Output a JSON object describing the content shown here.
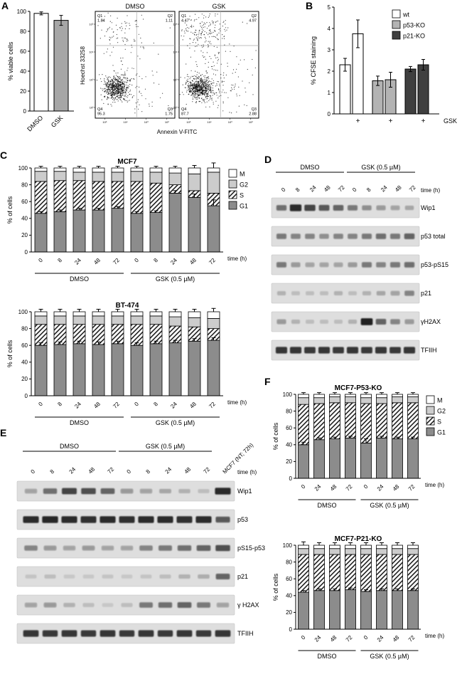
{
  "phases": [
    {
      "key": "g1",
      "label": "G1",
      "fill": "#8c8c8c",
      "hatch": false
    },
    {
      "key": "s",
      "label": "S",
      "fill": "#ffffff",
      "hatch": true
    },
    {
      "key": "g2",
      "label": "G2",
      "fill": "#cccccc",
      "hatch": false
    },
    {
      "key": "m",
      "label": "M",
      "fill": "#ffffff",
      "hatch": false
    }
  ],
  "legend": [
    {
      "label": "M",
      "fill": "#ffffff",
      "hatch": false
    },
    {
      "label": "G2",
      "fill": "#cccccc",
      "hatch": false
    },
    {
      "label": "S",
      "fill": "#ffffff",
      "hatch": true
    },
    {
      "label": "G1",
      "fill": "#8c8c8c",
      "hatch": false
    }
  ],
  "panelA": {
    "label": "A",
    "viability": {
      "type": "bar",
      "ylabel": "% viable cells",
      "ylim": [
        0,
        100
      ],
      "yticks": [
        0,
        20,
        40,
        60,
        80,
        100
      ],
      "categories": [
        "DMSO",
        "GSK"
      ],
      "values": [
        98,
        91
      ],
      "errors": [
        1.5,
        5
      ],
      "colors": [
        "#ffffff",
        "#a6a6a6"
      ]
    },
    "flow": {
      "ylabel": "Hoechst 33258",
      "xlabel": "Annexin V-FITC",
      "axis_ticks": [
        "10²",
        "10³",
        "10⁴",
        "10⁵"
      ],
      "plots": [
        {
          "title": "DMSO",
          "q1": "1.84",
          "q2": "1.11",
          "q3": "1.75",
          "q4": "95.3"
        },
        {
          "title": "GSK",
          "q1": "4.47",
          "q2": "4.97",
          "q3": "2.88",
          "q4": "87.7"
        }
      ]
    }
  },
  "panelB": {
    "label": "B",
    "chart": {
      "type": "bar",
      "ylabel": "% CFSE staining",
      "ylim": [
        0,
        5
      ],
      "yticks": [
        0,
        1,
        2,
        3,
        4,
        5
      ],
      "series": [
        {
          "name": "wt",
          "color": "#ffffff",
          "values": [
            2.3,
            3.75
          ],
          "errors": [
            0.3,
            0.65
          ]
        },
        {
          "name": "p53-KO",
          "color": "#b3b3b3",
          "values": [
            1.55,
            1.6
          ],
          "errors": [
            0.22,
            0.35
          ]
        },
        {
          "name": "p21-KO",
          "color": "#3f3f3f",
          "values": [
            2.1,
            2.3
          ],
          "errors": [
            0.12,
            0.25
          ]
        }
      ],
      "plus_label": "+",
      "x_axis_label": "GSK"
    }
  },
  "panelC": {
    "label": "C",
    "charts": [
      {
        "type": "stacked-bar",
        "title": "MCF7",
        "ylabel": "% of cells",
        "time_label": "time (h)",
        "times": [
          "0",
          "8",
          "24",
          "48",
          "72",
          "0",
          "8",
          "24",
          "48",
          "72"
        ],
        "groups": [
          {
            "name": "DMSO",
            "count": 5
          },
          {
            "name": "GSK (0.5 µM)",
            "count": 5
          }
        ],
        "g1": [
          46,
          48,
          50,
          50,
          52,
          46,
          47,
          70,
          65,
          55
        ],
        "s": [
          38,
          37,
          35,
          34,
          32,
          38,
          35,
          10,
          8,
          15
        ],
        "g2": [
          12,
          11,
          10,
          11,
          11,
          12,
          13,
          14,
          20,
          25
        ],
        "m": [
          4,
          4,
          5,
          5,
          5,
          4,
          5,
          6,
          7,
          5
        ],
        "err_g1": [
          2,
          2,
          2,
          2,
          2,
          2,
          2,
          3,
          4,
          7
        ],
        "err_top": [
          2,
          2,
          2,
          2,
          2,
          2,
          2,
          2,
          3,
          6
        ]
      },
      {
        "type": "stacked-bar",
        "title": "BT-474",
        "ylabel": "% of cells",
        "time_label": "time (h)",
        "times": [
          "0",
          "8",
          "24",
          "48",
          "72",
          "0",
          "8",
          "24",
          "48",
          "72"
        ],
        "groups": [
          {
            "name": "DMSO",
            "count": 5
          },
          {
            "name": "GSK (0.5 µM)",
            "count": 5
          }
        ],
        "g1": [
          60,
          61,
          62,
          61,
          62,
          60,
          62,
          63,
          65,
          66
        ],
        "s": [
          25,
          24,
          23,
          24,
          23,
          25,
          23,
          20,
          17,
          14
        ],
        "g2": [
          10,
          10,
          10,
          10,
          10,
          10,
          10,
          11,
          11,
          12
        ],
        "m": [
          5,
          5,
          5,
          5,
          5,
          5,
          5,
          6,
          7,
          8
        ],
        "err_g1": [
          3,
          3,
          3,
          3,
          3,
          3,
          3,
          3,
          3,
          3
        ],
        "err_top": [
          3,
          3,
          3,
          3,
          3,
          3,
          3,
          3,
          3,
          4
        ]
      }
    ]
  },
  "panelD": {
    "label": "D",
    "blot": {
      "groups": [
        {
          "name": "DMSO",
          "count": 5
        },
        {
          "name": "GSK (0.5 µM)",
          "count": 5
        }
      ],
      "lanes": [
        "0",
        "8",
        "24",
        "48",
        "72",
        "0",
        "8",
        "24",
        "48",
        "72"
      ],
      "time_label": "time (h)",
      "rows": [
        {
          "name": "Wip1",
          "bands": [
            0.55,
            0.9,
            0.75,
            0.65,
            0.6,
            0.5,
            0.4,
            0.35,
            0.3,
            0.25
          ]
        },
        {
          "name": "p53 total",
          "bands": [
            0.5,
            0.45,
            0.45,
            0.4,
            0.45,
            0.45,
            0.5,
            0.55,
            0.5,
            0.6
          ]
        },
        {
          "name": "p53-pS15",
          "bands": [
            0.5,
            0.35,
            0.3,
            0.3,
            0.3,
            0.35,
            0.5,
            0.45,
            0.5,
            0.55
          ]
        },
        {
          "name": "p21",
          "bands": [
            0.2,
            0.15,
            0.15,
            0.15,
            0.2,
            0.15,
            0.2,
            0.25,
            0.3,
            0.45
          ]
        },
        {
          "name": "γH2AX",
          "bands": [
            0.35,
            0.2,
            0.15,
            0.15,
            0.15,
            0.2,
            0.95,
            0.6,
            0.45,
            0.35
          ]
        },
        {
          "name": "TFIIH",
          "bands": [
            0.85,
            0.85,
            0.8,
            0.85,
            0.8,
            0.85,
            0.8,
            0.85,
            0.8,
            0.85
          ]
        }
      ]
    }
  },
  "panelE": {
    "label": "E",
    "blot": {
      "groups": [
        {
          "name": "DMSO",
          "count": 5
        },
        {
          "name": "GSK (0.5 µM)",
          "count": 5
        }
      ],
      "lanes": [
        "0",
        "8",
        "24",
        "48",
        "72",
        "0",
        "8",
        "24",
        "48",
        "72",
        "MCF7 (NT; 72h)"
      ],
      "time_label": "time (h)",
      "rows": [
        {
          "name": "Wip1",
          "bands": [
            0.3,
            0.55,
            0.75,
            0.7,
            0.6,
            0.35,
            0.3,
            0.25,
            0.2,
            0.15,
            0.9
          ]
        },
        {
          "name": "p53",
          "bands": [
            0.9,
            0.92,
            0.9,
            0.88,
            0.9,
            0.88,
            0.9,
            0.9,
            0.88,
            0.9,
            0.65
          ]
        },
        {
          "name": "pS15-p53",
          "bands": [
            0.45,
            0.35,
            0.3,
            0.35,
            0.3,
            0.3,
            0.45,
            0.5,
            0.55,
            0.6,
            0.7
          ]
        },
        {
          "name": "p21",
          "bands": [
            0.12,
            0.15,
            0.1,
            0.1,
            0.12,
            0.1,
            0.12,
            0.15,
            0.2,
            0.22,
            0.6
          ]
        },
        {
          "name": "γ H2AX",
          "bands": [
            0.3,
            0.35,
            0.2,
            0.15,
            0.1,
            0.15,
            0.5,
            0.55,
            0.6,
            0.5,
            0.3
          ]
        },
        {
          "name": "TFIIH",
          "bands": [
            0.85,
            0.8,
            0.85,
            0.8,
            0.85,
            0.8,
            0.85,
            0.8,
            0.85,
            0.8,
            0.85
          ]
        }
      ]
    }
  },
  "panelF": {
    "label": "F",
    "charts": [
      {
        "type": "stacked-bar",
        "title": "MCF7-P53-KO",
        "ylabel": "% of cells",
        "time_label": "time (h)",
        "times": [
          "0",
          "24",
          "48",
          "72",
          "0",
          "24",
          "48",
          "72"
        ],
        "groups": [
          {
            "name": "DMSO",
            "count": 4
          },
          {
            "name": "GSK (0.5 µM)",
            "count": 4
          }
        ],
        "g1": [
          40,
          46,
          47,
          48,
          42,
          48,
          47,
          47
        ],
        "s": [
          48,
          43,
          43,
          42,
          47,
          41,
          43,
          43
        ],
        "g2": [
          8,
          7,
          7,
          7,
          7,
          7,
          7,
          7
        ],
        "m": [
          4,
          4,
          3,
          3,
          4,
          4,
          3,
          3
        ],
        "err_g1": [
          3,
          2,
          2,
          2,
          5,
          2,
          2,
          2
        ],
        "err_top": [
          2,
          2,
          2,
          2,
          2,
          2,
          2,
          2
        ]
      },
      {
        "type": "stacked-bar",
        "title": "MCF7-P21-KO",
        "ylabel": "% of cells",
        "time_label": "time (h)",
        "times": [
          "0",
          "24",
          "48",
          "72",
          "0",
          "24",
          "48",
          "72"
        ],
        "groups": [
          {
            "name": "DMSO",
            "count": 4
          },
          {
            "name": "GSK (0.5 µM)",
            "count": 4
          }
        ],
        "g1": [
          44,
          46,
          46,
          47,
          45,
          46,
          46,
          46
        ],
        "s": [
          45,
          43,
          43,
          42,
          44,
          43,
          43,
          43
        ],
        "g2": [
          7,
          7,
          7,
          7,
          7,
          7,
          7,
          7
        ],
        "m": [
          4,
          4,
          4,
          4,
          4,
          4,
          4,
          4
        ],
        "err_g1": [
          2,
          2,
          2,
          2,
          2,
          2,
          2,
          2
        ],
        "err_top": [
          4,
          3,
          3,
          3,
          3,
          3,
          3,
          3
        ]
      }
    ]
  }
}
